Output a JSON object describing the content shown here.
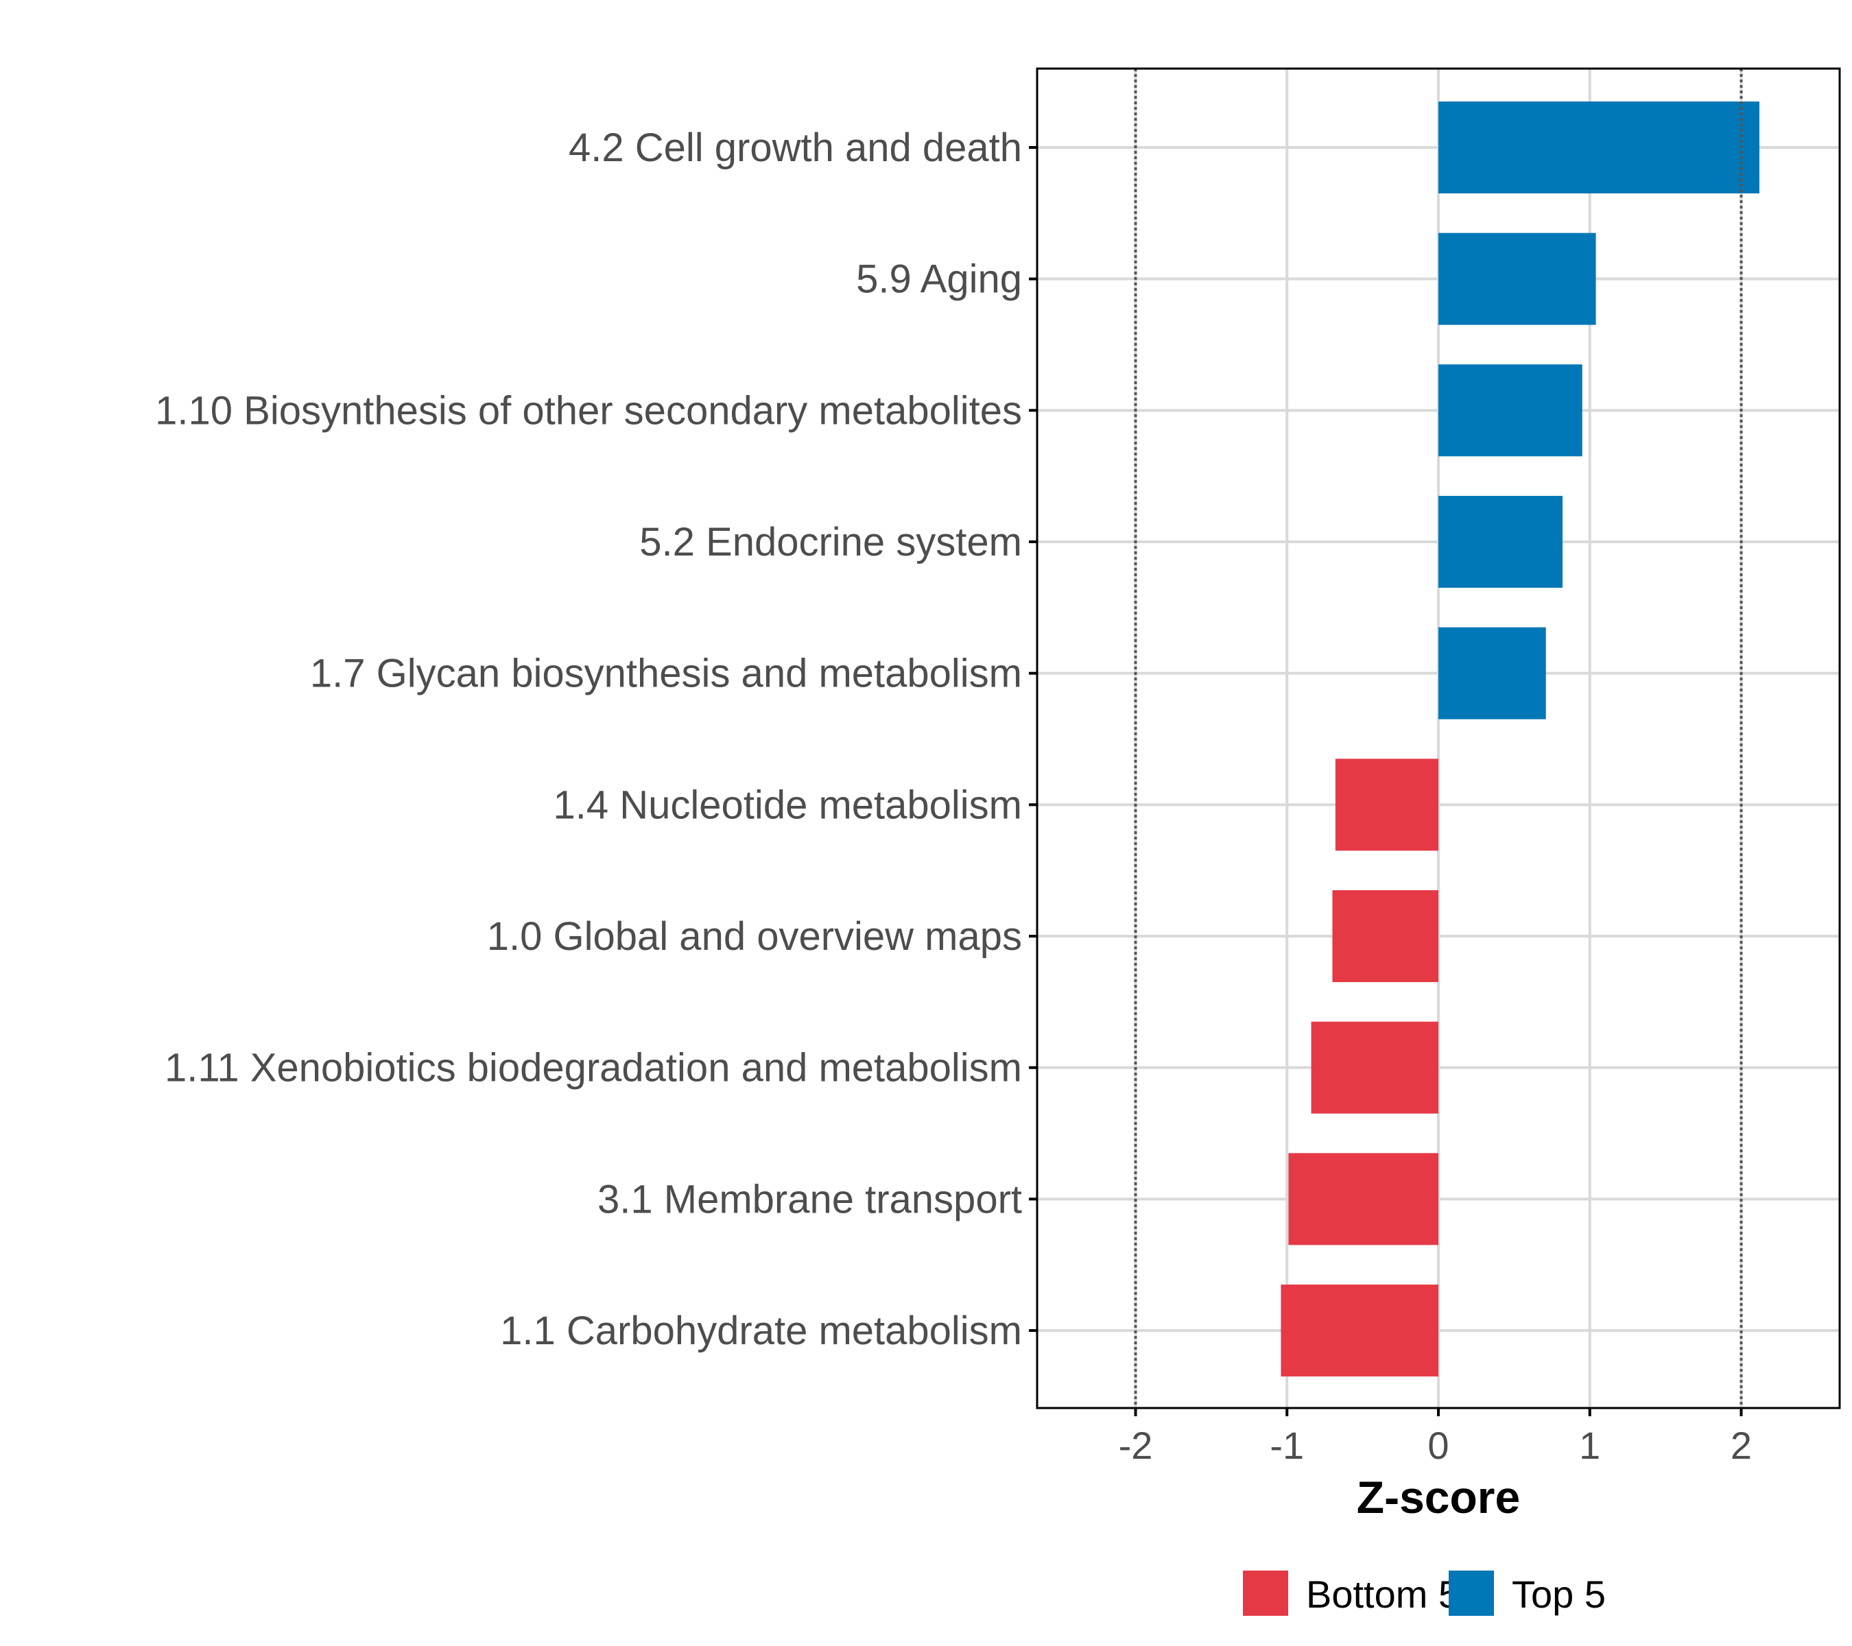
{
  "chart_data": {
    "type": "bar",
    "orientation": "horizontal",
    "title": "",
    "xlabel": "Z-score",
    "ylabel": "",
    "xlim": [
      -2.65,
      2.65
    ],
    "xticks": [
      -2,
      -1,
      0,
      1,
      2
    ],
    "xtick_labels": [
      "-2",
      "-1",
      "0",
      "1",
      "2"
    ],
    "reference_lines": [
      -2,
      2
    ],
    "grid": true,
    "legend_position": "bottom",
    "categories": [
      "4.2 Cell growth and death",
      "5.9 Aging",
      "1.10 Biosynthesis of other secondary metabolites",
      "5.2 Endocrine system",
      "1.7 Glycan biosynthesis and metabolism",
      "1.4 Nucleotide metabolism",
      "1.0 Global and overview maps",
      "1.11 Xenobiotics biodegradation and metabolism",
      "3.1 Membrane transport",
      "1.1 Carbohydrate metabolism"
    ],
    "values": [
      2.12,
      1.04,
      0.95,
      0.82,
      0.71,
      -0.68,
      -0.7,
      -0.84,
      -0.99,
      -1.04
    ],
    "groups": [
      "Top 5",
      "Top 5",
      "Top 5",
      "Top 5",
      "Top 5",
      "Bottom 5",
      "Bottom 5",
      "Bottom 5",
      "Bottom 5",
      "Bottom 5"
    ],
    "legend": [
      {
        "name": "Bottom 5",
        "color": "#E63946"
      },
      {
        "name": "Top 5",
        "color": "#0077B6"
      }
    ]
  },
  "colors": {
    "Bottom 5": "#E63946",
    "Top 5": "#0077B6",
    "grid": "#d9d9d9",
    "axis": "#000000",
    "refline": "#555555"
  }
}
